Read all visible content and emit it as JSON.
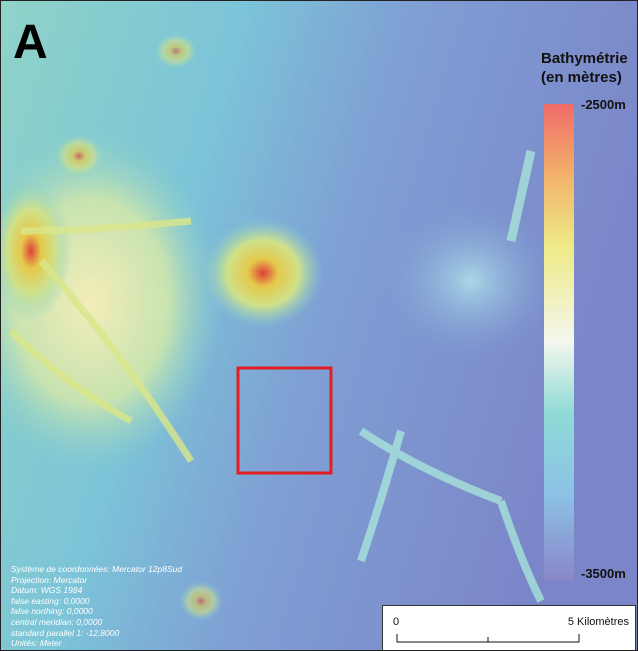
{
  "panel_label": "A",
  "legend": {
    "title_line1": "Bathymétrie",
    "title_line2": "(en mètres)",
    "max_label": "-2500m",
    "min_label": "-3500m"
  },
  "metadata": [
    "Système de coordonnées: Mercator 12p8Sud",
    "Projection: Mercator",
    "Datum: WGS 1984",
    "false easting: 0,0000",
    "false northing: 0,0000",
    "central meridian: 0,0000",
    "standard parallel 1: -12,8000",
    "Unités: Meter"
  ],
  "scale_bar": {
    "start": "0",
    "end": "5 Kilomètres"
  }
}
